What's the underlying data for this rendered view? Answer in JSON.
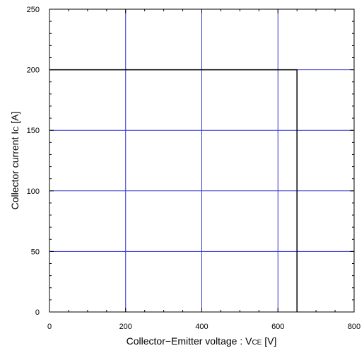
{
  "chart_data": {
    "type": "line",
    "title": "",
    "xlabel": {
      "text": "Collector−Emitter voltage : V",
      "sub": "CE",
      "unit": " [V]"
    },
    "ylabel": {
      "text": "Collector current I",
      "sub": "C",
      "unit": " [A]"
    },
    "xlim": [
      0,
      800
    ],
    "ylim": [
      0,
      250
    ],
    "x_ticks": [
      0,
      200,
      400,
      600,
      800
    ],
    "y_ticks": [
      0,
      50,
      100,
      150,
      200,
      250
    ],
    "x_tick_labels": [
      "0",
      "200",
      "400",
      "600",
      "800"
    ],
    "y_tick_labels": [
      "0",
      "50",
      "100",
      "150",
      "200",
      "250"
    ],
    "grid_x": [
      200,
      400,
      600
    ],
    "grid_y": [
      50,
      100,
      150,
      200
    ],
    "grid_color": "#3333cc",
    "series": [
      {
        "color": "#000000",
        "points": [
          [
            0,
            200
          ],
          [
            650,
            200
          ],
          [
            650,
            0
          ]
        ]
      }
    ]
  }
}
